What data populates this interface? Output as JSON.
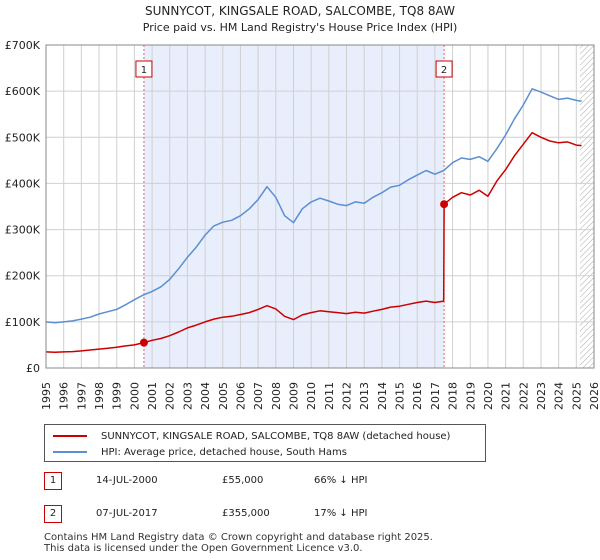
{
  "chart_data": {
    "type": "line",
    "title": "SUNNYCOT, KINGSALE ROAD, SALCOMBE, TQ8 8AW",
    "subtitle": "Price paid vs. HM Land Registry's House Price Index (HPI)",
    "xlabel": "",
    "ylabel": "",
    "xlim": [
      1995,
      2026
    ],
    "ylim": [
      0,
      700000
    ],
    "y_ticks": [
      {
        "value": 0,
        "label": "£0"
      },
      {
        "value": 100000,
        "label": "£100K"
      },
      {
        "value": 200000,
        "label": "£200K"
      },
      {
        "value": 300000,
        "label": "£300K"
      },
      {
        "value": 400000,
        "label": "£400K"
      },
      {
        "value": 500000,
        "label": "£500K"
      },
      {
        "value": 600000,
        "label": "£600K"
      },
      {
        "value": 700000,
        "label": "£700K"
      }
    ],
    "x_ticks": [
      "1995",
      "1996",
      "1997",
      "1998",
      "1999",
      "2000",
      "2001",
      "2002",
      "2003",
      "2004",
      "2005",
      "2006",
      "2007",
      "2008",
      "2009",
      "2010",
      "2011",
      "2012",
      "2013",
      "2014",
      "2015",
      "2016",
      "2017",
      "2018",
      "2019",
      "2020",
      "2021",
      "2022",
      "2023",
      "2024",
      "2025",
      "2026"
    ],
    "grid": true,
    "shaded_period": [
      2000.54,
      2017.52
    ],
    "future_hatch_from": 2025.2,
    "series": [
      {
        "name": "SUNNYCOT, KINGSALE ROAD, SALCOMBE, TQ8 8AW (detached house)",
        "color": "#cc0000",
        "points": [
          [
            1995,
            35000
          ],
          [
            1995.5,
            34000
          ],
          [
            1996,
            35000
          ],
          [
            1996.5,
            35500
          ],
          [
            1997,
            37000
          ],
          [
            1997.5,
            39000
          ],
          [
            1998,
            41000
          ],
          [
            1998.5,
            43000
          ],
          [
            1999,
            45000
          ],
          [
            1999.5,
            48000
          ],
          [
            2000,
            50000
          ],
          [
            2000.54,
            55000
          ],
          [
            2001,
            60000
          ],
          [
            2001.5,
            64000
          ],
          [
            2002,
            70000
          ],
          [
            2002.5,
            78000
          ],
          [
            2003,
            87000
          ],
          [
            2003.5,
            93000
          ],
          [
            2004,
            100000
          ],
          [
            2004.5,
            106000
          ],
          [
            2005,
            110000
          ],
          [
            2005.5,
            112000
          ],
          [
            2006,
            116000
          ],
          [
            2006.5,
            120000
          ],
          [
            2007,
            127000
          ],
          [
            2007.5,
            135000
          ],
          [
            2008,
            128000
          ],
          [
            2008.5,
            112000
          ],
          [
            2009,
            105000
          ],
          [
            2009.5,
            115000
          ],
          [
            2010,
            120000
          ],
          [
            2010.5,
            124000
          ],
          [
            2011,
            122000
          ],
          [
            2011.5,
            120000
          ],
          [
            2012,
            118000
          ],
          [
            2012.5,
            121000
          ],
          [
            2013,
            119000
          ],
          [
            2013.5,
            123000
          ],
          [
            2014,
            127000
          ],
          [
            2014.5,
            132000
          ],
          [
            2015,
            134000
          ],
          [
            2015.5,
            138000
          ],
          [
            2016,
            142000
          ],
          [
            2016.5,
            145000
          ],
          [
            2017,
            142000
          ],
          [
            2017.5,
            145000
          ],
          [
            2017.52,
            355000
          ],
          [
            2018,
            370000
          ],
          [
            2018.5,
            380000
          ],
          [
            2019,
            375000
          ],
          [
            2019.5,
            385000
          ],
          [
            2020,
            372000
          ],
          [
            2020.5,
            405000
          ],
          [
            2021,
            430000
          ],
          [
            2021.5,
            460000
          ],
          [
            2022,
            485000
          ],
          [
            2022.5,
            510000
          ],
          [
            2023,
            500000
          ],
          [
            2023.5,
            492000
          ],
          [
            2024,
            488000
          ],
          [
            2024.5,
            490000
          ],
          [
            2025,
            483000
          ],
          [
            2025.3,
            482000
          ]
        ]
      },
      {
        "name": "HPI: Average price, detached house, South Hams",
        "color": "#5b8fd0",
        "points": [
          [
            1995,
            100000
          ],
          [
            1995.5,
            98000
          ],
          [
            1996,
            100000
          ],
          [
            1996.5,
            102000
          ],
          [
            1997,
            106000
          ],
          [
            1997.5,
            110000
          ],
          [
            1998,
            117000
          ],
          [
            1998.5,
            122000
          ],
          [
            1999,
            127000
          ],
          [
            1999.5,
            137000
          ],
          [
            2000,
            148000
          ],
          [
            2000.5,
            158000
          ],
          [
            2001,
            166000
          ],
          [
            2001.5,
            176000
          ],
          [
            2002,
            192000
          ],
          [
            2002.5,
            215000
          ],
          [
            2003,
            240000
          ],
          [
            2003.5,
            262000
          ],
          [
            2004,
            288000
          ],
          [
            2004.5,
            308000
          ],
          [
            2005,
            316000
          ],
          [
            2005.5,
            320000
          ],
          [
            2006,
            330000
          ],
          [
            2006.5,
            345000
          ],
          [
            2007,
            365000
          ],
          [
            2007.5,
            393000
          ],
          [
            2008,
            370000
          ],
          [
            2008.5,
            330000
          ],
          [
            2009,
            315000
          ],
          [
            2009.5,
            345000
          ],
          [
            2010,
            360000
          ],
          [
            2010.5,
            368000
          ],
          [
            2011,
            362000
          ],
          [
            2011.5,
            355000
          ],
          [
            2012,
            352000
          ],
          [
            2012.5,
            360000
          ],
          [
            2013,
            357000
          ],
          [
            2013.5,
            370000
          ],
          [
            2014,
            380000
          ],
          [
            2014.5,
            392000
          ],
          [
            2015,
            396000
          ],
          [
            2015.5,
            408000
          ],
          [
            2016,
            418000
          ],
          [
            2016.5,
            428000
          ],
          [
            2017,
            420000
          ],
          [
            2017.5,
            428000
          ],
          [
            2018,
            445000
          ],
          [
            2018.5,
            455000
          ],
          [
            2019,
            452000
          ],
          [
            2019.5,
            458000
          ],
          [
            2020,
            448000
          ],
          [
            2020.5,
            475000
          ],
          [
            2021,
            505000
          ],
          [
            2021.5,
            540000
          ],
          [
            2022,
            570000
          ],
          [
            2022.5,
            605000
          ],
          [
            2023,
            598000
          ],
          [
            2023.5,
            590000
          ],
          [
            2024,
            582000
          ],
          [
            2024.5,
            585000
          ],
          [
            2025,
            580000
          ],
          [
            2025.3,
            578000
          ]
        ]
      }
    ],
    "markers": [
      {
        "label": "1",
        "x": 2000.54,
        "y": 55000
      },
      {
        "label": "2",
        "x": 2017.52,
        "y": 355000
      }
    ]
  },
  "legend": {
    "property_label": "SUNNYCOT, KINGSALE ROAD, SALCOMBE, TQ8 8AW (detached house)",
    "hpi_label": "HPI: Average price, detached house, South Hams",
    "property_color": "#cc0000",
    "hpi_color": "#5b8fd0"
  },
  "sales": [
    {
      "num": "1",
      "date": "14-JUL-2000",
      "price": "£55,000",
      "hpi": "66% ↓ HPI"
    },
    {
      "num": "2",
      "date": "07-JUL-2017",
      "price": "£355,000",
      "hpi": "17% ↓ HPI"
    }
  ],
  "footer": {
    "line1": "Contains HM Land Registry data © Crown copyright and database right 2025.",
    "line2": "This data is licensed under the Open Government Licence v3.0."
  }
}
